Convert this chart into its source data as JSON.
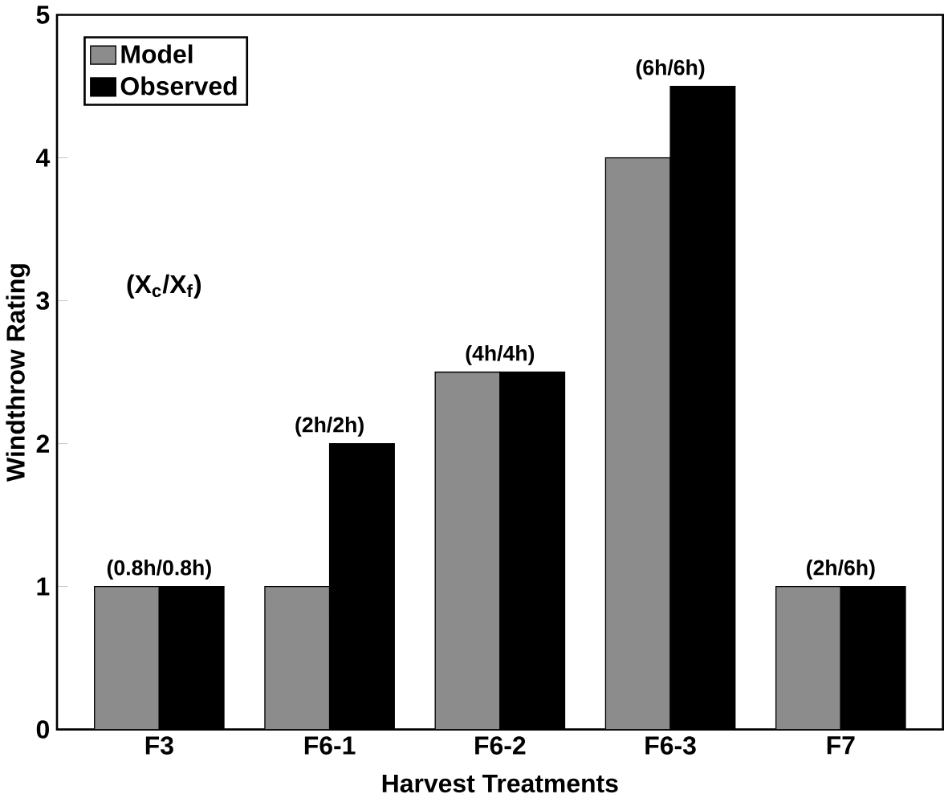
{
  "chart_data": {
    "type": "bar",
    "xlabel": "Harvest Treatments",
    "ylabel": "Windthrow Rating",
    "categories": [
      "F3",
      "F6-1",
      "F6-2",
      "F6-3",
      "F7"
    ],
    "series": [
      {
        "name": "Model",
        "color": "#8c8c8c",
        "values": [
          1.0,
          1.0,
          2.5,
          4.0,
          1.0
        ]
      },
      {
        "name": "Observed",
        "color": "#000000",
        "values": [
          1.0,
          2.0,
          2.5,
          4.5,
          1.0
        ]
      }
    ],
    "ylim": [
      0,
      5
    ],
    "yticks": [
      0,
      1,
      2,
      3,
      4,
      5
    ],
    "legend": "top left",
    "grid": false,
    "annotations": [
      {
        "text": "(0.8h/0.8h)",
        "x": "F3",
        "y": 1.0
      },
      {
        "text": "(2h/2h)",
        "x": "F6-1",
        "y": 2.0
      },
      {
        "text": "(4h/4h)",
        "x": "F6-2",
        "y": 2.5
      },
      {
        "text": "(6h/6h)",
        "x": "F6-3",
        "y": 4.5
      },
      {
        "text": "(2h/6h)",
        "x": "F7",
        "y": 1.0
      },
      "(X$_{c}$/X$_{f}$)"
    ]
  }
}
